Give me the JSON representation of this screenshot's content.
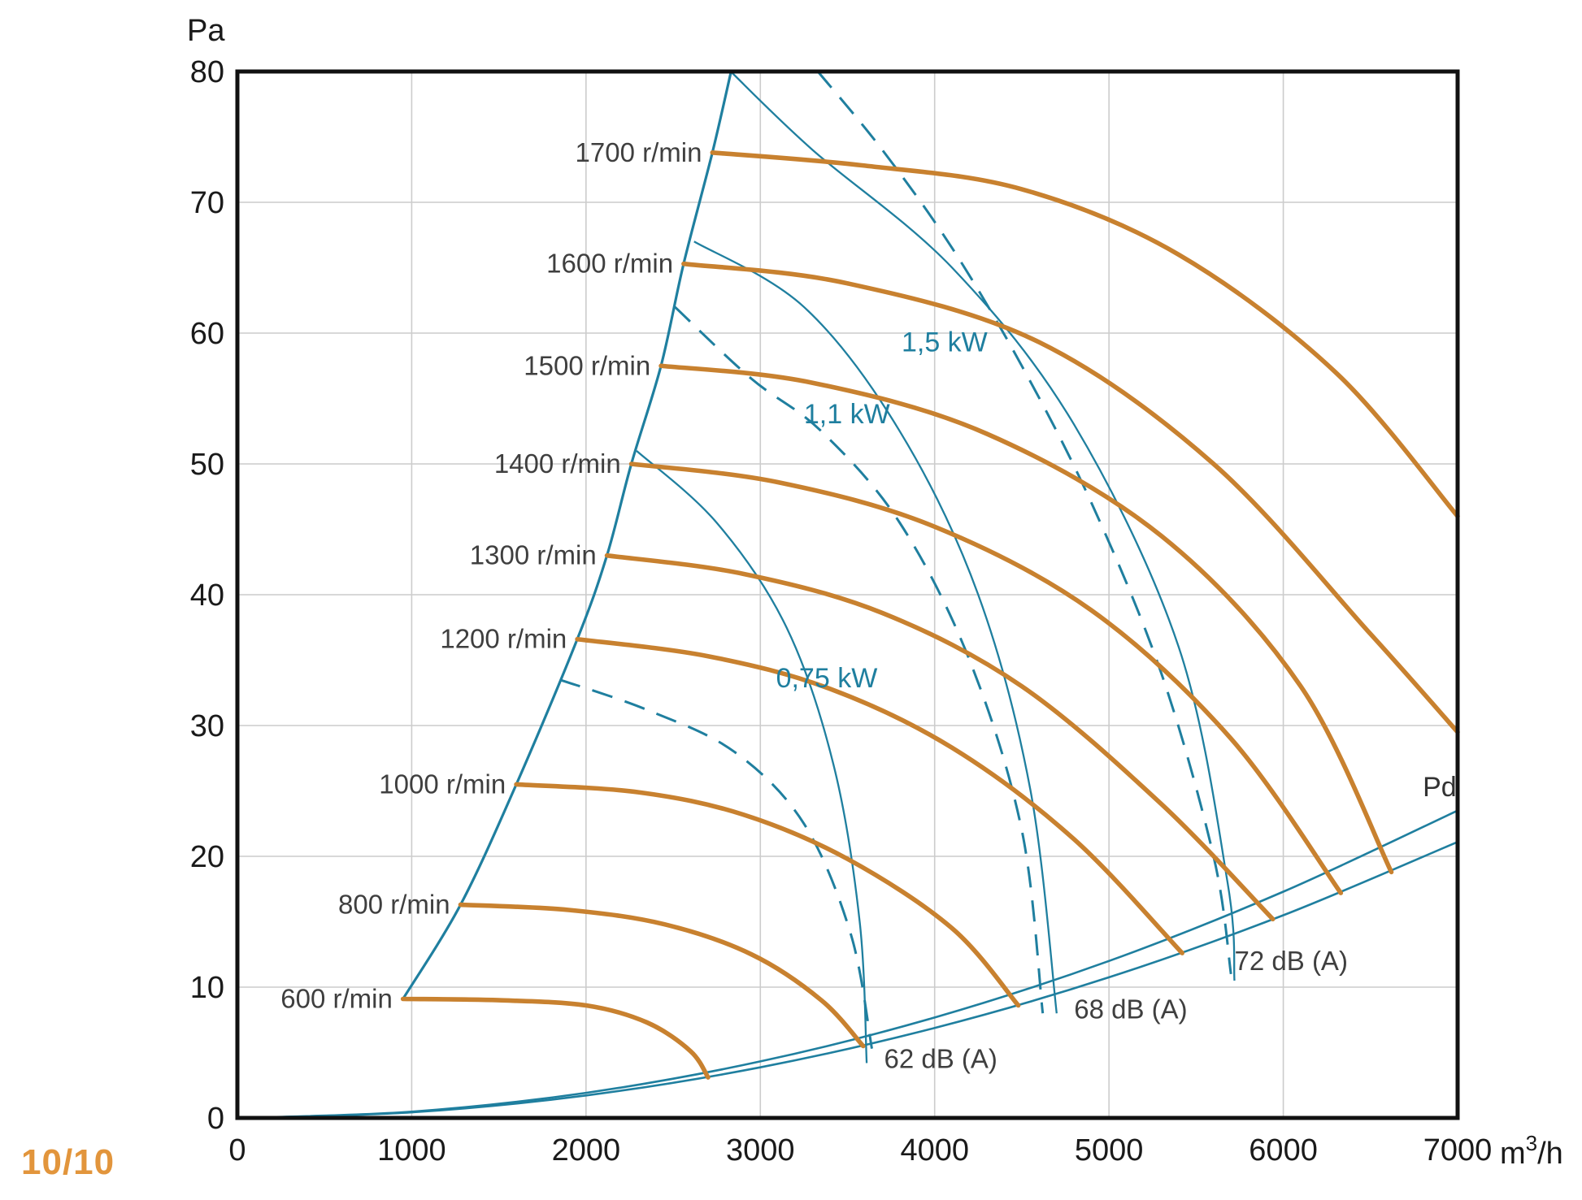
{
  "footer": "10/10",
  "chart_data": {
    "type": "line",
    "title": "",
    "xlabel": {
      "pre": "m",
      "sup": "3",
      "post": "/h"
    },
    "ylabel": "Pa",
    "x_range": [
      0,
      7000
    ],
    "x_step": 1000,
    "y_range": [
      0,
      80
    ],
    "y_step": 10,
    "grid": true,
    "legend_position": "none",
    "colors": {
      "fan_curve": "#c8812f",
      "aux_curve": "#1f7f9f",
      "grid_line": "#cccccc",
      "axis_frame": "#111111",
      "tick_text": "#1a1a1a",
      "label_text": "#3f3f3f",
      "kw_text": "#1f7f9f",
      "pd_text": "#333333",
      "footer_text": "#e2953c"
    },
    "fan_curves": [
      {
        "label": "600 r/min",
        "label_pos": [
          890,
          9.1
        ],
        "points": [
          [
            950,
            9.1
          ],
          [
            1500,
            9.0
          ],
          [
            2000,
            8.6
          ],
          [
            2350,
            7.3
          ],
          [
            2600,
            5.1
          ],
          [
            2700,
            3.1
          ]
        ]
      },
      {
        "label": "800 r/min",
        "label_pos": [
          1220,
          16.3
        ],
        "points": [
          [
            1280,
            16.3
          ],
          [
            1900,
            15.9
          ],
          [
            2450,
            14.8
          ],
          [
            2950,
            12.5
          ],
          [
            3350,
            9.0
          ],
          [
            3590,
            5.5
          ]
        ]
      },
      {
        "label": "1000 r/min",
        "label_pos": [
          1540,
          25.5
        ],
        "points": [
          [
            1600,
            25.5
          ],
          [
            2300,
            24.9
          ],
          [
            2900,
            23.2
          ],
          [
            3500,
            19.8
          ],
          [
            4100,
            14.5
          ],
          [
            4480,
            8.6
          ]
        ]
      },
      {
        "label": "1200 r/min",
        "label_pos": [
          1890,
          36.6
        ],
        "points": [
          [
            1950,
            36.6
          ],
          [
            2700,
            35.3
          ],
          [
            3400,
            32.8
          ],
          [
            4100,
            28.3
          ],
          [
            4800,
            21.3
          ],
          [
            5420,
            12.6
          ]
        ]
      },
      {
        "label": "1300 r/min",
        "label_pos": [
          2060,
          43.0
        ],
        "points": [
          [
            2120,
            43
          ],
          [
            2900,
            41.6
          ],
          [
            3700,
            38.6
          ],
          [
            4500,
            33
          ],
          [
            5300,
            24
          ],
          [
            5940,
            15.2
          ]
        ]
      },
      {
        "label": "1400 r/min",
        "label_pos": [
          2200,
          50.0
        ],
        "points": [
          [
            2260,
            50
          ],
          [
            3100,
            48.6
          ],
          [
            4000,
            45.2
          ],
          [
            4900,
            38.8
          ],
          [
            5700,
            29
          ],
          [
            6330,
            17.2
          ]
        ]
      },
      {
        "label": "1500 r/min",
        "label_pos": [
          2370,
          57.5
        ],
        "points": [
          [
            2430,
            57.5
          ],
          [
            3300,
            56.2
          ],
          [
            4300,
            52.3
          ],
          [
            5300,
            44.5
          ],
          [
            6100,
            33
          ],
          [
            6620,
            18.8
          ]
        ]
      },
      {
        "label": "1600 r/min",
        "label_pos": [
          2500,
          65.3
        ],
        "points": [
          [
            2560,
            65.3
          ],
          [
            3500,
            63.8
          ],
          [
            4600,
            59.3
          ],
          [
            5600,
            50
          ],
          [
            6500,
            37
          ],
          [
            7000,
            29.5
          ]
        ]
      },
      {
        "label": "1700 r/min",
        "label_pos": [
          2665,
          73.8
        ],
        "points": [
          [
            2725,
            73.8
          ],
          [
            3600,
            72.8
          ],
          [
            4500,
            71
          ],
          [
            5400,
            66
          ],
          [
            6300,
            57
          ],
          [
            7000,
            46
          ]
        ]
      }
    ],
    "surge_line": {
      "points": [
        [
          950,
          9.1
        ],
        [
          1280,
          16.3
        ],
        [
          1600,
          25.5
        ],
        [
          1950,
          36.6
        ],
        [
          2120,
          43
        ],
        [
          2260,
          50
        ],
        [
          2430,
          57.5
        ],
        [
          2560,
          65.3
        ],
        [
          2725,
          73.8
        ],
        [
          2832,
          80
        ]
      ]
    },
    "power_curves": [
      {
        "label": "0,75 kW",
        "label_pos": [
          3090,
          33.6
        ],
        "points": [
          [
            1850,
            33.5
          ],
          [
            2350,
            31.2
          ],
          [
            2850,
            28.0
          ],
          [
            3250,
            22.5
          ],
          [
            3520,
            14.0
          ],
          [
            3640,
            5.3
          ]
        ]
      },
      {
        "label": "1,1 kW",
        "label_pos": [
          3250,
          53.8
        ],
        "points": [
          [
            2510,
            62
          ],
          [
            2950,
            56.5
          ],
          [
            3350,
            52.5
          ],
          [
            3800,
            45.5
          ],
          [
            4200,
            35
          ],
          [
            4500,
            22
          ],
          [
            4620,
            8
          ]
        ]
      },
      {
        "label": "1,5 kW",
        "label_pos": [
          3810,
          59.3
        ],
        "points": [
          [
            3330,
            80
          ],
          [
            3700,
            74
          ],
          [
            4100,
            66.5
          ],
          [
            4500,
            57.5
          ],
          [
            4900,
            47
          ],
          [
            5300,
            34
          ],
          [
            5600,
            20
          ],
          [
            5700,
            11
          ]
        ]
      }
    ],
    "noise_curves": [
      {
        "label": "62 dB (A)",
        "label_pos": [
          3710,
          4.5
        ],
        "points": [
          [
            2290,
            51
          ],
          [
            2750,
            45.5
          ],
          [
            3150,
            37.5
          ],
          [
            3420,
            27
          ],
          [
            3570,
            15
          ],
          [
            3610,
            4.2
          ]
        ]
      },
      {
        "label": "68 dB (A)",
        "label_pos": [
          4800,
          8.3
        ],
        "points": [
          [
            2620,
            67
          ],
          [
            3250,
            62
          ],
          [
            3800,
            52.5
          ],
          [
            4250,
            40
          ],
          [
            4550,
            25
          ],
          [
            4700,
            8
          ]
        ]
      },
      {
        "label": "72 dB (A)",
        "label_pos": [
          5720,
          12.0
        ],
        "points": [
          [
            2830,
            80
          ],
          [
            3300,
            74
          ],
          [
            4100,
            65
          ],
          [
            4800,
            53
          ],
          [
            5400,
            36
          ],
          [
            5680,
            18
          ],
          [
            5720,
            10.5
          ]
        ]
      }
    ],
    "pd_curve": {
      "label": "Pd",
      "label_pos": [
        6800,
        24.6
      ],
      "points": [
        [
          0,
          0
        ],
        [
          1000,
          0.48
        ],
        [
          2000,
          1.92
        ],
        [
          3000,
          4.32
        ],
        [
          4000,
          7.68
        ],
        [
          5000,
          12.0
        ],
        [
          6000,
          17.3
        ],
        [
          7000,
          23.5
        ]
      ]
    },
    "boundary_line": {
      "points": [
        [
          0,
          0
        ],
        [
          1000,
          0.43
        ],
        [
          2000,
          1.72
        ],
        [
          3000,
          3.87
        ],
        [
          4000,
          6.88
        ],
        [
          5000,
          10.75
        ],
        [
          6000,
          15.5
        ],
        [
          7000,
          21.1
        ]
      ]
    }
  }
}
